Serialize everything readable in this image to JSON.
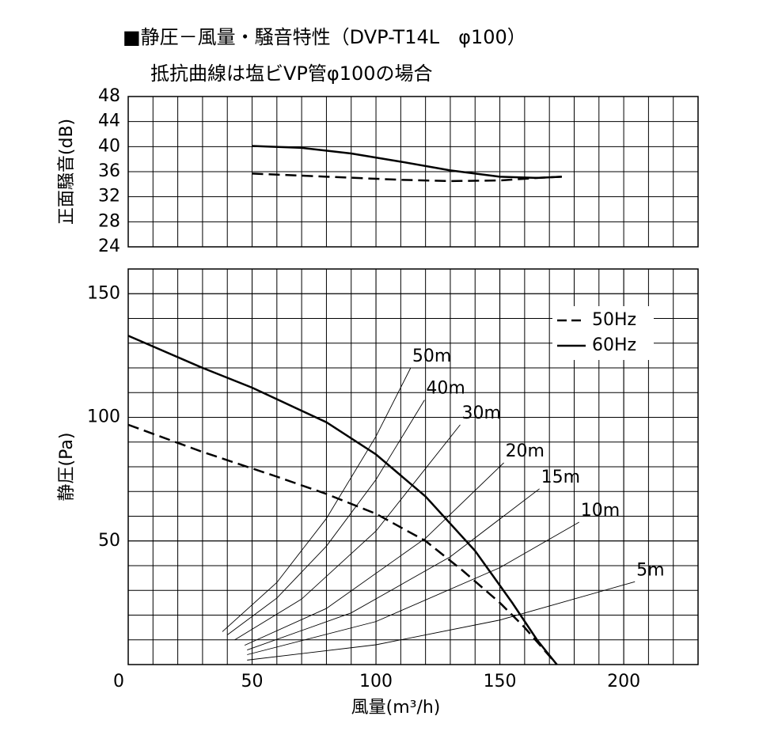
{
  "chart_data": [
    {
      "type": "line",
      "title": "■静圧－風量・騒音特性（DVP-T14L　φ100）",
      "subtitle": "抵抗曲線は塩ビVP管φ100の場合",
      "ylabel": "正面騒音(dB)",
      "xlim": [
        0,
        230
      ],
      "ylim": [
        24,
        48
      ],
      "yticks": [
        24,
        28,
        32,
        36,
        40,
        44,
        48
      ],
      "grid": true,
      "x_grid_step": 10,
      "series": [
        {
          "style": "dashed",
          "color": "#000000",
          "x": [
            50,
            80,
            110,
            130,
            150,
            165,
            175
          ],
          "values": [
            35.7,
            35.2,
            34.7,
            34.5,
            34.6,
            35,
            35.2
          ]
        },
        {
          "style": "solid",
          "color": "#000000",
          "x": [
            50,
            70,
            90,
            110,
            130,
            150,
            165,
            175
          ],
          "values": [
            40.1,
            39.8,
            38.9,
            37.6,
            36.2,
            35.2,
            35,
            35.2
          ]
        }
      ]
    },
    {
      "type": "line",
      "xlabel": "風量(m³/h)",
      "ylabel": "静圧(Pa)",
      "xlim": [
        0,
        230
      ],
      "ylim": [
        0,
        160
      ],
      "xticks": [
        0,
        50,
        100,
        150,
        200
      ],
      "yticks": [
        50,
        100,
        150
      ],
      "grid": true,
      "x_grid_step": 10,
      "y_grid_step": 10,
      "legend": "upper right",
      "series": [
        {
          "name": "50Hz",
          "style": "dashed",
          "color": "#000000",
          "x": [
            0,
            30,
            60,
            80,
            100,
            120,
            135,
            150,
            160,
            173
          ],
          "values": [
            97,
            86,
            76,
            69,
            61,
            50,
            38,
            25,
            15,
            0
          ]
        },
        {
          "name": "60Hz",
          "style": "solid",
          "color": "#000000",
          "x": [
            0,
            30,
            50,
            80,
            100,
            120,
            140,
            155,
            165,
            173
          ],
          "values": [
            133,
            120,
            112,
            98,
            85,
            68,
            46,
            25,
            10,
            0
          ]
        }
      ],
      "resistance_curves": [
        {
          "label": "50m",
          "x": [
            38,
            60,
            80,
            100,
            114
          ],
          "values": [
            13.3,
            33.2,
            59.1,
            92.3,
            120
          ]
        },
        {
          "label": "40m",
          "x": [
            40,
            60,
            80,
            100,
            119.6
          ],
          "values": [
            12,
            26.9,
            47.9,
            74.8,
            107
          ]
        },
        {
          "label": "30m",
          "x": [
            43,
            70,
            100,
            134
          ],
          "values": [
            10,
            26.5,
            54,
            97
          ]
        },
        {
          "label": "20m",
          "x": [
            47,
            80,
            120,
            151.6
          ],
          "values": [
            7.8,
            22.7,
            51.1,
            81.6
          ]
        },
        {
          "label": "15m",
          "x": [
            48,
            90,
            130,
            166
          ],
          "values": [
            5.9,
            20.9,
            43.6,
            71.1
          ]
        },
        {
          "label": "10m",
          "x": [
            48,
            100,
            150,
            182
          ],
          "values": [
            4,
            17.4,
            39.2,
            57.6
          ]
        },
        {
          "label": "5m",
          "x": [
            48,
            100,
            150,
            204.5
          ],
          "values": [
            1.8,
            8,
            18,
            33.5
          ]
        }
      ]
    }
  ]
}
